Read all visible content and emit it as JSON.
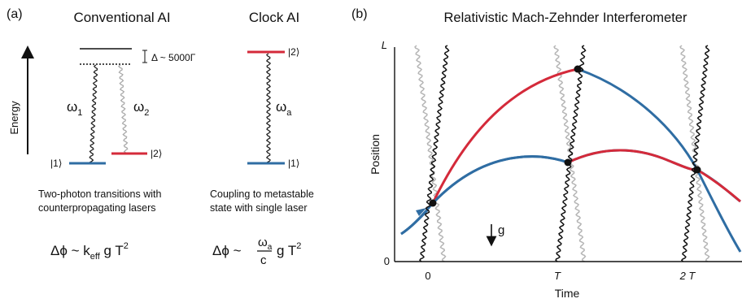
{
  "panel_a": {
    "label": "(a)",
    "conventional": {
      "title": "Conventional AI",
      "energy_axis_label": "Energy",
      "detuning_label": "Δ ~ 5000Γ",
      "omega1": "ω",
      "omega1_sub": "1",
      "omega2": "ω",
      "omega2_sub": "2",
      "level1": "|1⟩",
      "level2": "|2⟩",
      "desc_line1": "Two-photon transitions with",
      "desc_line2": "counterpropagating lasers",
      "phase_prefix": "Δϕ ~ k",
      "phase_sub": "eff",
      "phase_suffix": " g T",
      "phase_sup": "2"
    },
    "clock": {
      "title": "Clock AI",
      "omega": "ω",
      "omega_sub": "a",
      "level1": "|1⟩",
      "level2": "|2⟩",
      "desc_line1": "Coupling to metastable",
      "desc_line2": "state with single laser",
      "phase_prefix": "Δϕ ~",
      "frac_num": "ω",
      "frac_num_sub": "a",
      "frac_den": "c",
      "phase_suffix": "g T",
      "phase_sup": "2"
    }
  },
  "panel_b": {
    "label": "(b)",
    "title": "Relativistic Mach-Zehnder Interferometer",
    "ylabel": "Position",
    "xlabel": "Time",
    "y_top_label": "L",
    "y_bottom_label": "0",
    "x_ticks": [
      "0",
      "T",
      "2 T"
    ],
    "gravity_label": "g"
  },
  "colors": {
    "red": "#d42a3a",
    "blue": "#2f6da3",
    "gray": "#b5b5b5",
    "black": "#111111"
  }
}
